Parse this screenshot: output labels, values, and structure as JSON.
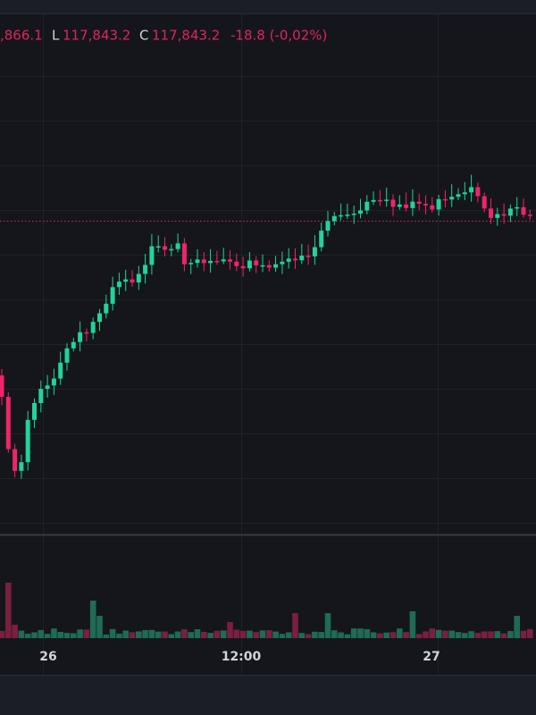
{
  "header": {
    "open_fragment": ",866.1",
    "low_label": "L",
    "low": "117,843.2",
    "close_label": "C",
    "close": "117,843.2",
    "change": "-18.8 (-0,02%)"
  },
  "time_axis": [
    "26",
    "12:00",
    "27"
  ]
}
